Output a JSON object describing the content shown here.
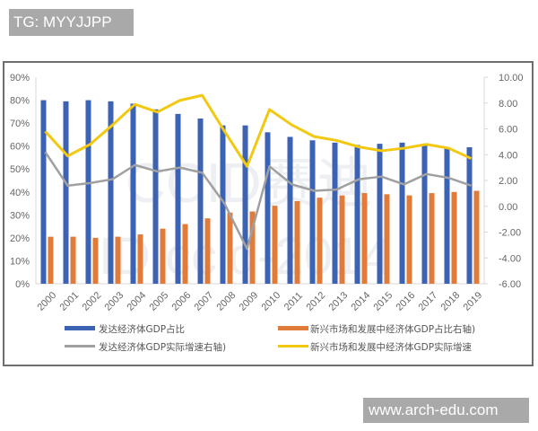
{
  "watermarks": {
    "top_left": "TG: MYYJJPP",
    "bottom_right": "www.arch-edu.com",
    "chart_faint_1": "CCID赛迪",
    "chart_faint_2": "ID ccid-2014"
  },
  "colors": {
    "blue": "#3c62b4",
    "orange": "#e07b39",
    "gray": "#a0a0a0",
    "yellow": "#f2c811"
  },
  "chart_data": {
    "type": "bar",
    "title": "",
    "categories": [
      "2000",
      "2001",
      "2002",
      "2003",
      "2004",
      "2005",
      "2006",
      "2007",
      "2008",
      "2009",
      "2010",
      "2011",
      "2012",
      "2013",
      "2014",
      "2015",
      "2016",
      "2017",
      "2018",
      "2019"
    ],
    "left_axis": {
      "label": "",
      "ticks": [
        "0%",
        "10%",
        "20%",
        "30%",
        "40%",
        "50%",
        "60%",
        "70%",
        "80%",
        "90%"
      ],
      "ylim": [
        0,
        90
      ]
    },
    "right_axis": {
      "label": "",
      "ticks": [
        "-6.00",
        "-4.00",
        "-2.00",
        "0.00",
        "2.00",
        "4.00",
        "6.00",
        "8.00",
        "10.00"
      ],
      "ylim": [
        -6,
        10
      ]
    },
    "series": [
      {
        "name": "发达经济体GDP占比",
        "type": "bar",
        "axis": "left",
        "color": "#3c62b4",
        "values": [
          80,
          79.5,
          80,
          79.5,
          78.5,
          76,
          74,
          72,
          69,
          69,
          66,
          64,
          62.5,
          61.5,
          60.5,
          61,
          61.5,
          60.5,
          59,
          59.5
        ]
      },
      {
        "name": "新兴市场和发展中经济体GDP占比右轴)",
        "type": "bar",
        "axis": "left",
        "color": "#e07b39",
        "values": [
          20.5,
          20.5,
          20,
          20.5,
          21.5,
          24,
          26,
          28.5,
          31,
          31.5,
          34,
          36,
          37.5,
          38.5,
          39.5,
          39,
          38.5,
          39.5,
          40,
          40.5
        ]
      },
      {
        "name": "发达经济体GDP实际增速右轴)",
        "type": "line",
        "axis": "right",
        "color": "#a0a0a0",
        "values": [
          4.2,
          1.6,
          1.8,
          2.1,
          3.2,
          2.7,
          3.0,
          2.6,
          0.2,
          -3.3,
          3.1,
          1.7,
          1.2,
          1.3,
          2.1,
          2.3,
          1.7,
          2.5,
          2.2,
          1.6
        ]
      },
      {
        "name": "新兴市场和发展中经济体GDP实际增速",
        "type": "line",
        "axis": "right",
        "color": "#f2c811",
        "values": [
          5.8,
          3.9,
          4.8,
          6.3,
          7.9,
          7.3,
          8.2,
          8.6,
          5.8,
          3.1,
          7.5,
          6.3,
          5.4,
          5.1,
          4.6,
          4.3,
          4.5,
          4.8,
          4.5,
          3.7
        ]
      }
    ],
    "legend": [
      "发达经济体GDP占比",
      "新兴市场和发展中经济体GDP占比右轴)",
      "发达经济体GDP实际增速右轴)",
      "新兴市场和发展中经济体GDP实际增速"
    ],
    "legend_position": "bottom",
    "grid": false
  }
}
